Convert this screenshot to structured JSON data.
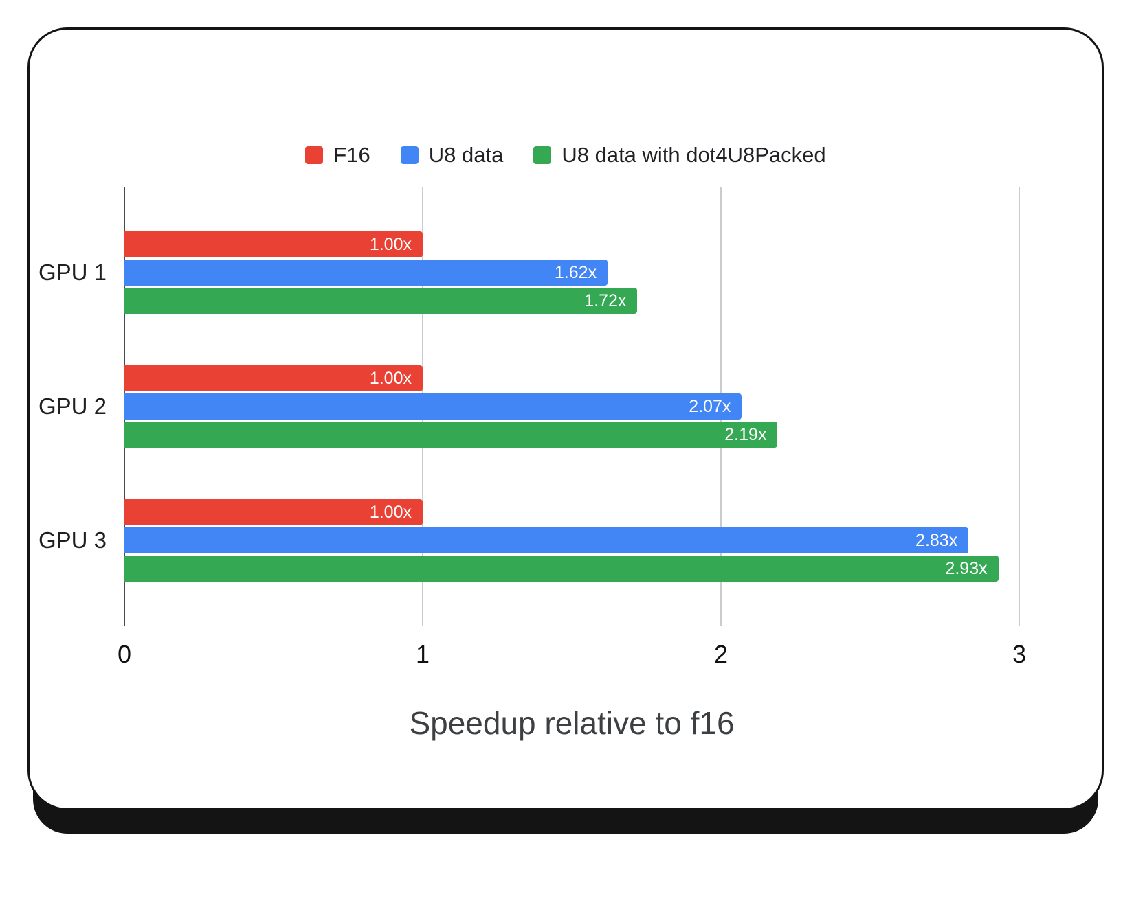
{
  "card": {
    "background": "#ffffff",
    "border_color": "#141414"
  },
  "chart_data": {
    "type": "bar",
    "orientation": "horizontal",
    "title": "",
    "xlabel": "Speedup relative to f16",
    "categories": [
      "GPU 1",
      "GPU 2",
      "GPU 3"
    ],
    "series": [
      {
        "name": "F16",
        "color": "#E94235",
        "values": [
          1.0,
          1.0,
          1.0
        ],
        "labels": [
          "1.00x",
          "1.00x",
          "1.00x"
        ]
      },
      {
        "name": "U8 data",
        "color": "#4285F4",
        "values": [
          1.62,
          2.07,
          2.83
        ],
        "labels": [
          "1.62x",
          "2.07x",
          "2.83x"
        ]
      },
      {
        "name": "U8 data with dot4U8Packed",
        "color": "#34A853",
        "values": [
          1.72,
          2.19,
          2.93
        ],
        "labels": [
          "1.72x",
          "2.19x",
          "2.93x"
        ]
      }
    ],
    "xlim": [
      0,
      3
    ],
    "x_ticks": [
      "0",
      "1",
      "2",
      "3"
    ],
    "grid": true,
    "legend_position": "top",
    "gridline_color": "#cccccc",
    "baseline_color": "#4a4a4a"
  }
}
